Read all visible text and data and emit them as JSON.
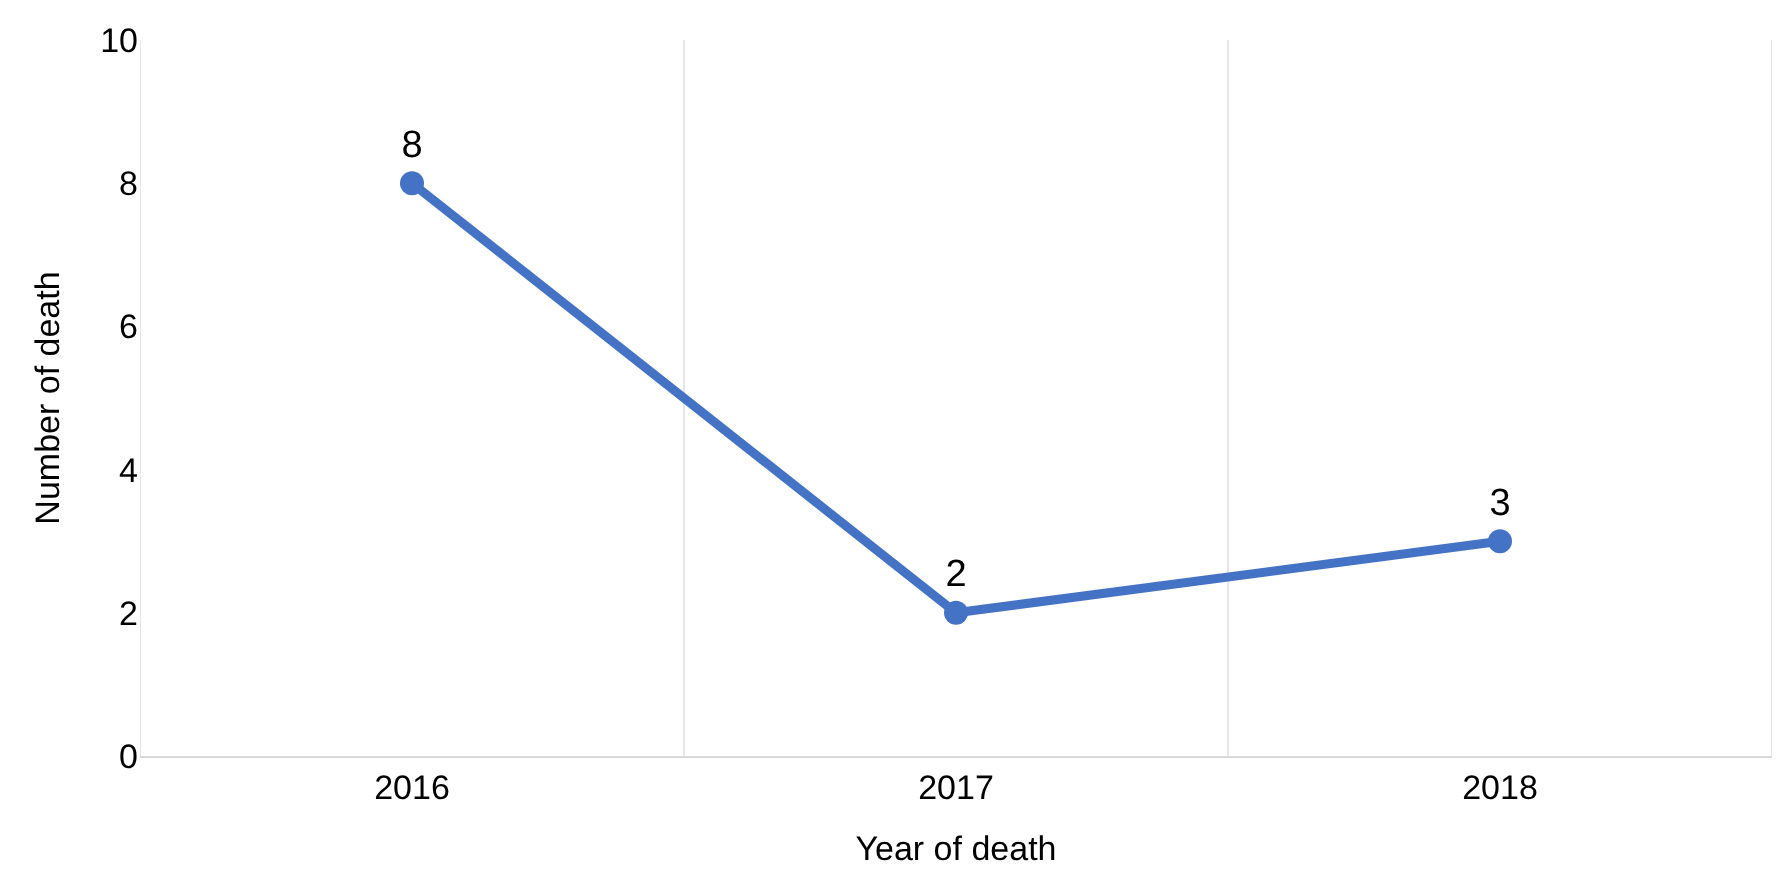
{
  "chart_data": {
    "type": "line",
    "xlabel": "Year of death",
    "ylabel": "Number of death",
    "categories": [
      "2016",
      "2017",
      "2018"
    ],
    "series": [
      {
        "color": "#4472c4",
        "values": [
          8,
          2,
          3
        ]
      }
    ],
    "ylim": [
      0,
      10
    ],
    "yticks": [
      0,
      2,
      4,
      6,
      8,
      10
    ],
    "grid": "x",
    "marker": "circle",
    "line_style": "solid",
    "data_labels": true,
    "legend": false
  }
}
